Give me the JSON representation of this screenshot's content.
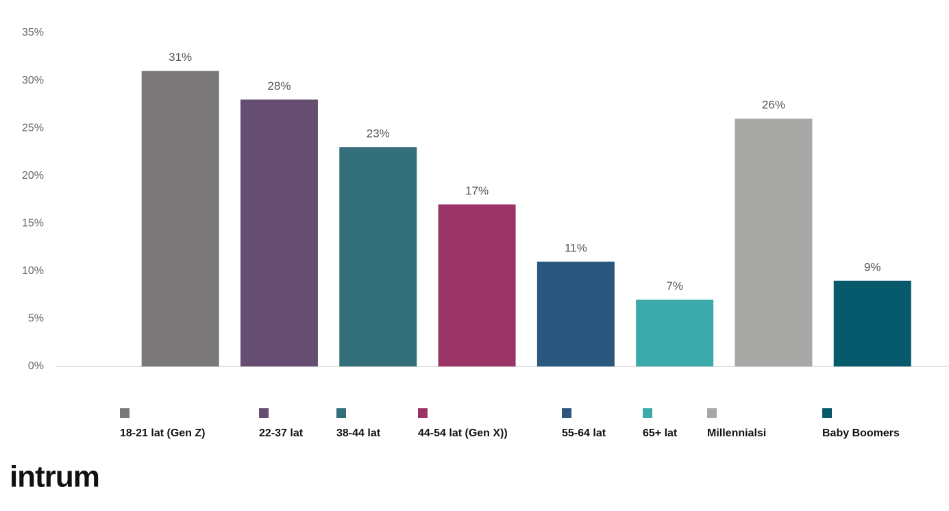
{
  "chart_data": {
    "type": "bar",
    "categories": [
      "18-21 lat (Gen Z)",
      "22-37 lat",
      "38-44 lat",
      "44-54 lat (Gen X))",
      "55-64 lat",
      "65+ lat",
      "Millennialsi",
      "Baby Boomers"
    ],
    "values": [
      31,
      28,
      23,
      17,
      11,
      7,
      26,
      9
    ],
    "value_labels": [
      "31%",
      "28%",
      "23%",
      "17%",
      "11%",
      "7%",
      "26%",
      "9%"
    ],
    "colors": [
      "#7a7879",
      "#664d72",
      "#336e7b",
      "#9b3466",
      "#29577d",
      "#3ca9aa",
      "#a8a8a7",
      "#065a6b"
    ],
    "ylim": [
      0,
      35
    ],
    "yticks": [
      {
        "value": 0,
        "label": "0%"
      },
      {
        "value": 5,
        "label": "5%"
      },
      {
        "value": 10,
        "label": "10%"
      },
      {
        "value": 15,
        "label": "15%"
      },
      {
        "value": 20,
        "label": "20%"
      },
      {
        "value": 25,
        "label": "25%"
      },
      {
        "value": 30,
        "label": "30%"
      },
      {
        "value": 35,
        "label": "35%"
      }
    ],
    "grid": false,
    "logo": "intrum"
  }
}
